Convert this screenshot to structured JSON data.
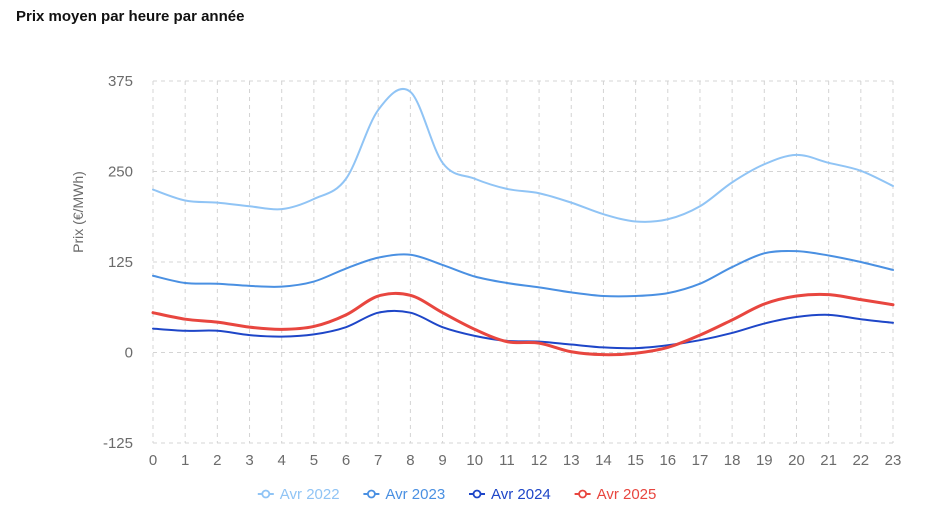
{
  "chart_data": {
    "type": "line",
    "title": "Prix moyen par heure par année",
    "xlabel": "",
    "ylabel": "Prix (€/MWh)",
    "x": [
      0,
      1,
      2,
      3,
      4,
      5,
      6,
      7,
      8,
      9,
      10,
      11,
      12,
      13,
      14,
      15,
      16,
      17,
      18,
      19,
      20,
      21,
      22,
      23
    ],
    "ylim": [
      -125,
      375
    ],
    "yticks": [
      -125,
      0,
      125,
      250,
      375
    ],
    "grid": true,
    "legend_position": "bottom",
    "series": [
      {
        "name": "Avr 2022",
        "color": "#90c4f5",
        "values": [
          225,
          210,
          207,
          202,
          198,
          212,
          240,
          335,
          360,
          262,
          240,
          226,
          220,
          207,
          191,
          181,
          184,
          202,
          235,
          260,
          273,
          262,
          251,
          230
        ]
      },
      {
        "name": "Avr 2023",
        "color": "#4a90e2",
        "values": [
          106,
          96,
          95,
          92,
          91,
          98,
          116,
          131,
          135,
          121,
          105,
          96,
          90,
          83,
          78,
          78,
          82,
          95,
          118,
          137,
          140,
          134,
          125,
          114
        ]
      },
      {
        "name": "Avr 2024",
        "color": "#1e46c8",
        "values": [
          33,
          30,
          30,
          24,
          22,
          25,
          35,
          55,
          55,
          35,
          23,
          16,
          15,
          11,
          7,
          6,
          10,
          17,
          27,
          40,
          49,
          52,
          46,
          41
        ]
      },
      {
        "name": "Avr 2025",
        "color": "#e8463f",
        "values": [
          55,
          46,
          42,
          35,
          32,
          36,
          52,
          78,
          79,
          55,
          32,
          15,
          13,
          1,
          -3,
          -1,
          7,
          24,
          45,
          67,
          78,
          80,
          73,
          66
        ]
      }
    ]
  }
}
